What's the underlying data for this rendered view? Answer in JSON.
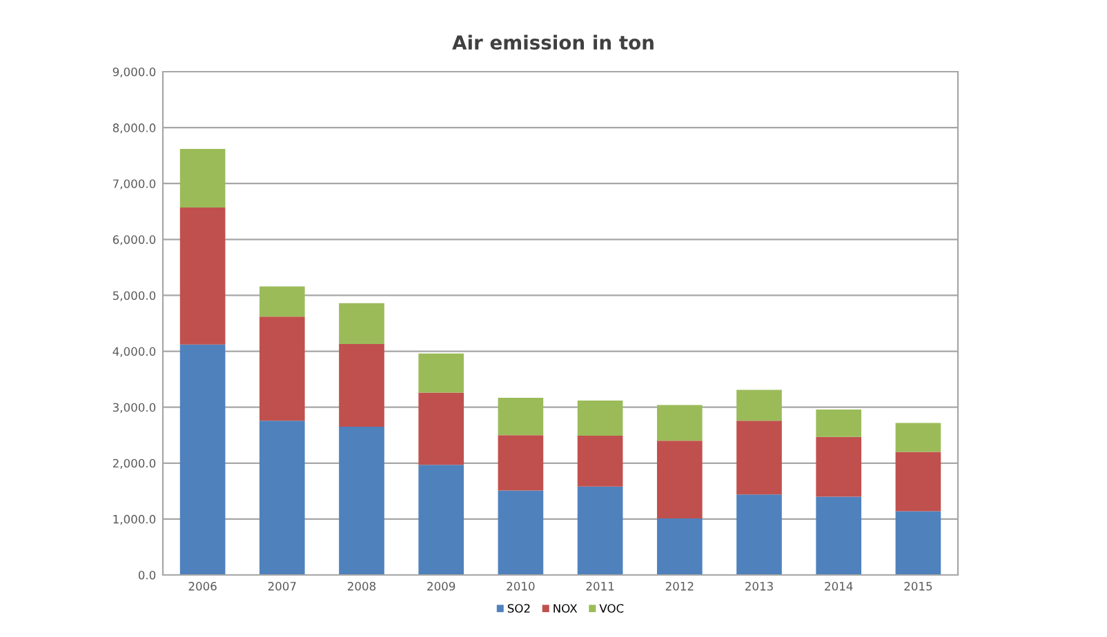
{
  "chart_data": {
    "type": "bar",
    "title": "Air emission in ton",
    "stacked": true,
    "categories": [
      "2006",
      "2007",
      "2008",
      "2009",
      "2010",
      "2011",
      "2012",
      "2013",
      "2014",
      "2015"
    ],
    "series": [
      {
        "name": "SO2",
        "color": "#4f81bd",
        "values": [
          4120,
          2760,
          2650,
          1970,
          1510,
          1580,
          1010,
          1440,
          1400,
          1140
        ]
      },
      {
        "name": "NOX",
        "color": "#c0504d",
        "values": [
          2450,
          1860,
          1480,
          1290,
          990,
          910,
          1390,
          1320,
          1070,
          1060
        ]
      },
      {
        "name": "VOC",
        "color": "#9bbb59",
        "values": [
          1050,
          540,
          730,
          700,
          670,
          630,
          640,
          550,
          490,
          520
        ]
      }
    ],
    "ylim": [
      0,
      9000
    ],
    "yticks": [
      {
        "value": 0,
        "label": "0.0"
      },
      {
        "value": 1000,
        "label": "1,000.0"
      },
      {
        "value": 2000,
        "label": "2,000.0"
      },
      {
        "value": 3000,
        "label": "3,000.0"
      },
      {
        "value": 4000,
        "label": "4,000.0"
      },
      {
        "value": 5000,
        "label": "5,000.0"
      },
      {
        "value": 6000,
        "label": "6,000.0"
      },
      {
        "value": 7000,
        "label": "7,000.0"
      },
      {
        "value": 8000,
        "label": "8,000.0"
      },
      {
        "value": 9000,
        "label": "9,000.0"
      }
    ],
    "grid": "y",
    "legend": "bottom"
  }
}
